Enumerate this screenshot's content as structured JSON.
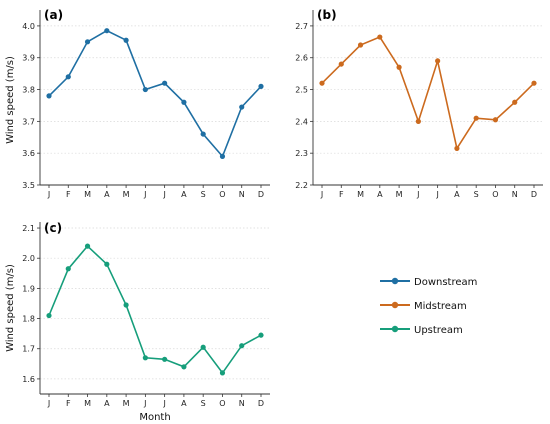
{
  "chart_data": [
    {
      "type": "line",
      "panel_label": "(a)",
      "categories": [
        "J",
        "F",
        "M",
        "A",
        "M",
        "J",
        "J",
        "A",
        "S",
        "O",
        "N",
        "D"
      ],
      "series": [
        {
          "name": "Downstream",
          "color": "#1f6fa3",
          "values": [
            3.78,
            3.84,
            3.95,
            3.985,
            3.955,
            3.8,
            3.82,
            3.76,
            3.66,
            3.59,
            3.745,
            3.81
          ]
        }
      ],
      "ylabel": "Wind speed (m/s)",
      "xlabel": "",
      "ylim": [
        3.5,
        4.05
      ],
      "yticks": [
        3.5,
        3.6,
        3.7,
        3.8,
        3.9,
        4.0
      ],
      "grid": "horizontal dotted"
    },
    {
      "type": "line",
      "panel_label": "(b)",
      "categories": [
        "J",
        "F",
        "M",
        "A",
        "M",
        "J",
        "J",
        "A",
        "S",
        "O",
        "N",
        "D"
      ],
      "series": [
        {
          "name": "Midstream",
          "color": "#cc6a1e",
          "values": [
            2.52,
            2.58,
            2.64,
            2.665,
            2.57,
            2.4,
            2.59,
            2.315,
            2.41,
            2.405,
            2.46,
            2.52
          ]
        }
      ],
      "ylabel": "",
      "xlabel": "",
      "ylim": [
        2.2,
        2.75
      ],
      "yticks": [
        2.2,
        2.3,
        2.4,
        2.5,
        2.6,
        2.7
      ],
      "grid": "horizontal dotted"
    },
    {
      "type": "line",
      "panel_label": "(c)",
      "categories": [
        "J",
        "F",
        "M",
        "A",
        "M",
        "J",
        "J",
        "A",
        "S",
        "O",
        "N",
        "D"
      ],
      "series": [
        {
          "name": "Upstream",
          "color": "#169e7b",
          "values": [
            1.81,
            1.965,
            2.04,
            1.98,
            1.845,
            1.67,
            1.665,
            1.64,
            1.705,
            1.62,
            1.71,
            1.745
          ]
        }
      ],
      "ylabel": "Wind speed (m/s)",
      "xlabel": "Month",
      "ylim": [
        1.55,
        2.12
      ],
      "yticks": [
        1.6,
        1.7,
        1.8,
        1.9,
        2.0,
        2.1
      ],
      "grid": "horizontal dotted"
    }
  ],
  "legend": {
    "placement": "bottom-right",
    "items": [
      {
        "label": "Downstream",
        "color": "#1f6fa3"
      },
      {
        "label": "Midstream",
        "color": "#cc6a1e"
      },
      {
        "label": "Upstream",
        "color": "#169e7b"
      }
    ]
  }
}
